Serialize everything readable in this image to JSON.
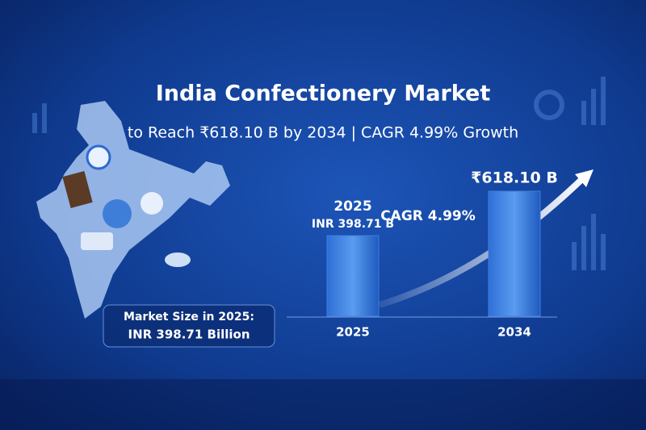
{
  "chart_data": {
    "type": "bar",
    "title": "India Confectionery Market",
    "subtitle": "to Reach ₹618.10 B by 2034 | CAGR 4.99% Growth",
    "categories": [
      "2025",
      "2034"
    ],
    "values": [
      398.71,
      618.1
    ],
    "value_labels": [
      "INR 398.71 B",
      "₹618.10 B"
    ],
    "color": "#3b7fe0",
    "annotations": [
      "CAGR 4.99%",
      "Market Size in 2025:",
      "INR 398.71 Billion"
    ]
  }
}
